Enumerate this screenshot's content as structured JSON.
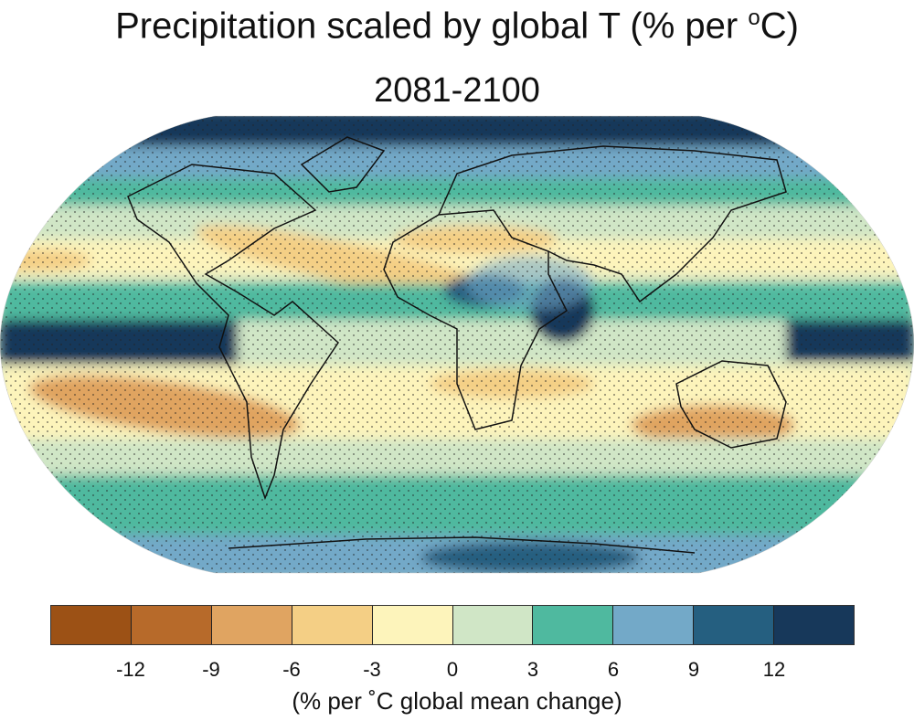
{
  "title": {
    "main": "Precipitation scaled by global T (% per ",
    "sup": "o",
    "unit_end": "C)",
    "subtitle": "2081-2100"
  },
  "colorbar": {
    "colors": [
      "#9c5115",
      "#b76a2a",
      "#e0a461",
      "#f4cf85",
      "#fdf4bb",
      "#d0e6c6",
      "#4fb99f",
      "#73a9c8",
      "#255f80",
      "#17385a"
    ],
    "ticks": [
      "-12",
      "-9",
      "-6",
      "-3",
      "0",
      "3",
      "6",
      "9",
      "12"
    ],
    "label": "(% per ˚C global mean change)"
  },
  "map": {
    "projection": "Robinson",
    "stippling": true,
    "coastlines": true
  }
}
